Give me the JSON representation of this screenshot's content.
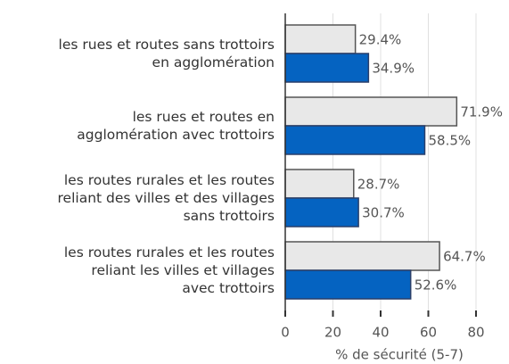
{
  "chart_data": {
    "type": "hbar",
    "categories": [
      "les rues et routes sans trottoirs\nen agglomération",
      "les rues et routes en\nagglomération avec trottoirs",
      "les routes rurales et les routes\nreliant des villes et des villages\nsans trottoirs",
      "les routes rurales et les routes\nreliant les villes et villages\navec trottoirs"
    ],
    "series": [
      {
        "color": "#e8e8e8",
        "values": [
          29.4,
          71.9,
          28.7,
          64.7
        ],
        "value_labels": [
          "29.4%",
          "71.9%",
          "28.7%",
          "64.7%"
        ]
      },
      {
        "color": "#0563c1",
        "values": [
          34.9,
          58.5,
          30.7,
          52.6
        ],
        "value_labels": [
          "34.9%",
          "58.5%",
          "30.7%",
          "52.6%"
        ]
      }
    ],
    "xlabel": "% de sécurité (5-7)",
    "xlim": [
      0,
      80
    ],
    "xticks": [
      0,
      20,
      40,
      60,
      80
    ],
    "grid": true
  }
}
